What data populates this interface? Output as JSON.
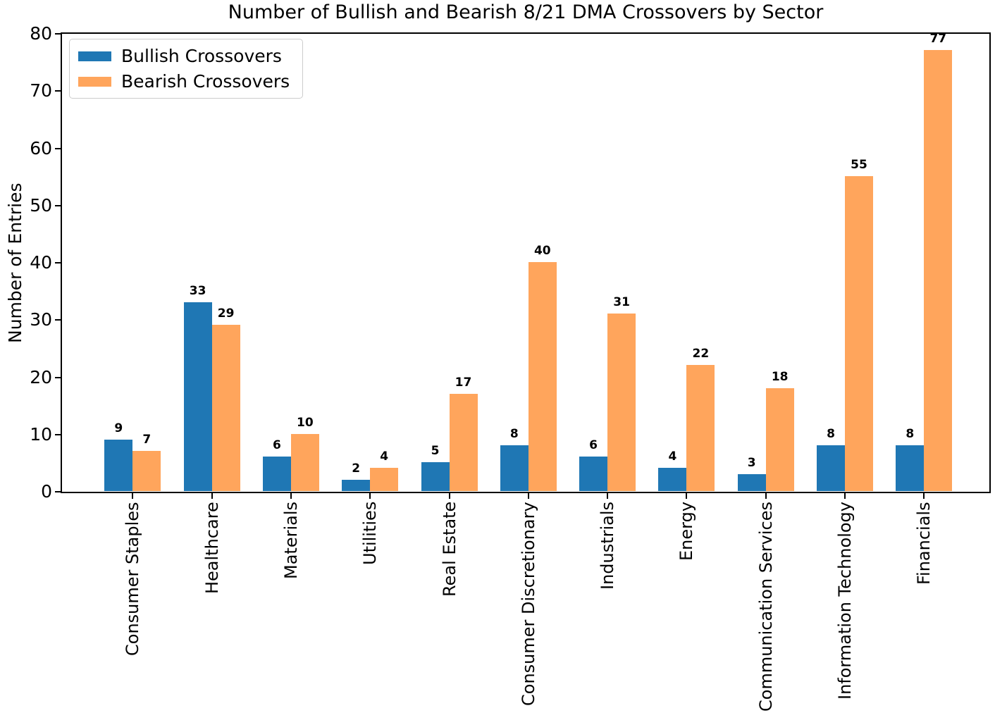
{
  "title": "Number of Bullish and Bearish 8/21 DMA Crossovers by Sector",
  "chart_data": {
    "type": "bar",
    "title": "Number of Bullish and Bearish 8/21 DMA Crossovers by Sector",
    "xlabel": "",
    "ylabel": "Number of Entries",
    "categories": [
      "Consumer Staples",
      "Healthcare",
      "Materials",
      "Utilities",
      "Real Estate",
      "Consumer Discretionary",
      "Industrials",
      "Energy",
      "Communication Services",
      "Information Technology",
      "Financials"
    ],
    "series": [
      {
        "name": "Bullish Crossovers",
        "color": "#1f77b4",
        "values": [
          9,
          33,
          6,
          2,
          5,
          8,
          6,
          4,
          3,
          8,
          8
        ]
      },
      {
        "name": "Bearish Crossovers",
        "color": "#ffa55c",
        "values": [
          7,
          29,
          10,
          4,
          17,
          40,
          31,
          22,
          18,
          55,
          77
        ]
      }
    ],
    "ylim": [
      0,
      80
    ],
    "yticks": [
      0,
      10,
      20,
      30,
      40,
      50,
      60,
      70,
      80
    ],
    "grid": false,
    "legend_position": "upper left",
    "bar_value_labels": true,
    "x_tick_rotation_deg": 90,
    "axis_color": "#000000",
    "background_color": "#ffffff"
  }
}
